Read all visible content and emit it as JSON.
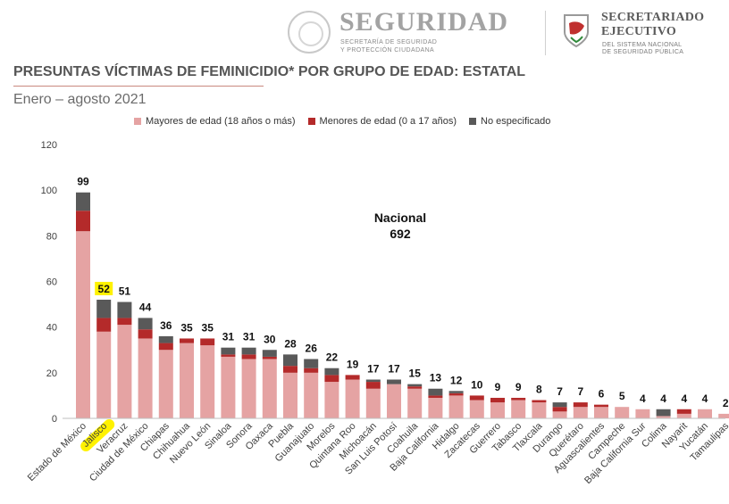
{
  "header": {
    "seguridad_title": "SEGURIDAD",
    "seguridad_sub1": "SECRETARÍA DE SEGURIDAD",
    "seguridad_sub2": "Y PROTECCIÓN CIUDADANA",
    "secretariado_t1": "SECRETARIADO",
    "secretariado_t2": "EJECUTIVO",
    "secretariado_s1": "DEL SISTEMA NACIONAL",
    "secretariado_s2": "DE SEGURIDAD PÚBLICA"
  },
  "page": {
    "title": "PRESUNTAS VÍCTIMAS DE FEMINICIDIO* POR GRUPO DE EDAD: ESTATAL",
    "period": "Enero – agosto 2021"
  },
  "colors": {
    "mayores": "#e5a3a3",
    "menores": "#b42a2a",
    "noesp": "#595959",
    "highlight": "#fff200",
    "axis_text": "#404040"
  },
  "chart_data": {
    "type": "bar",
    "stacked": true,
    "title": "",
    "xlabel": "",
    "ylabel": "",
    "ylim": [
      0,
      120
    ],
    "yticks": [
      0,
      20,
      40,
      60,
      80,
      100,
      120
    ],
    "legend_position": "top",
    "annotation": {
      "line1": "Nacional",
      "line2": "692"
    },
    "highlighted_category": "Jalisco",
    "categories": [
      "Estado de México",
      "Jalisco",
      "Veracruz",
      "Ciudad de México",
      "Chiapas",
      "Chihuahua",
      "Nuevo León",
      "Sinaloa",
      "Sonora",
      "Oaxaca",
      "Puebla",
      "Guanajuato",
      "Morelos",
      "Quintana Roo",
      "Michoacán",
      "San Luis Potosí",
      "Coahuila",
      "Baja California",
      "Hidalgo",
      "Zacatecas",
      "Guerrero",
      "Tabasco",
      "Tlaxcala",
      "Durango",
      "Querétaro",
      "Aguascalientes",
      "Campeche",
      "Baja California Sur",
      "Colima",
      "Nayarit",
      "Yucatán",
      "Tamaulipas"
    ],
    "totals": [
      99,
      52,
      51,
      44,
      36,
      35,
      35,
      31,
      31,
      30,
      28,
      26,
      22,
      19,
      17,
      17,
      15,
      13,
      12,
      10,
      9,
      9,
      8,
      7,
      7,
      6,
      5,
      4,
      4,
      4,
      4,
      2
    ],
    "series": [
      {
        "name": "Mayores de edad (18 años o más)",
        "key": "mayores",
        "values": [
          82,
          38,
          41,
          35,
          30,
          33,
          32,
          27,
          26,
          26,
          20,
          20,
          16,
          17,
          13,
          15,
          13,
          9,
          10,
          8,
          7,
          8,
          7,
          3,
          5,
          5,
          5,
          4,
          1,
          2,
          4,
          2
        ]
      },
      {
        "name": "Menores de edad (0 a 17 años)",
        "key": "menores",
        "values": [
          9,
          6,
          3,
          4,
          3,
          2,
          3,
          1,
          2,
          1,
          3,
          2,
          3,
          2,
          3,
          0,
          1,
          1,
          1,
          2,
          2,
          1,
          1,
          2,
          2,
          1,
          0,
          0,
          0,
          2,
          0,
          0
        ]
      },
      {
        "name": "No especificado",
        "key": "noesp",
        "values": [
          8,
          8,
          7,
          5,
          3,
          0,
          0,
          3,
          3,
          3,
          5,
          4,
          3,
          0,
          1,
          2,
          1,
          3,
          1,
          0,
          0,
          0,
          0,
          2,
          0,
          0,
          0,
          0,
          3,
          0,
          0,
          0
        ]
      }
    ]
  }
}
